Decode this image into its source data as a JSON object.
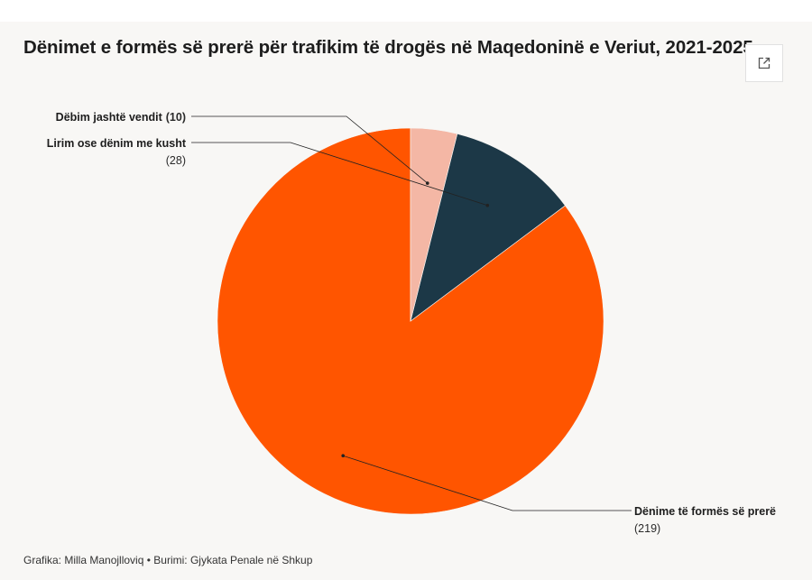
{
  "title": "Dënimet e formës së prerë për trafikim të drogës në Maqedoninë e Veriut, 2021-2025",
  "footer": {
    "graphic_label": "Grafika: Milla Manojlloviq",
    "separator": "•",
    "source_label": "Burimi: Gjykata Penale në Shkup"
  },
  "icons": {
    "expand": "external-link-icon"
  },
  "chart_data": {
    "type": "pie",
    "title": "Dënimet e formës së prerë për trafikim të drogës në Maqedoninë e Veriut, 2021-2025",
    "start_angle_deg": 0,
    "direction": "counterclockwise",
    "slices": [
      {
        "label": "Dënime të formës së prerë",
        "value": 219,
        "value_text": "(219)",
        "color": "#ff5500"
      },
      {
        "label": "Lirim ose dënim me kusht",
        "value": 28,
        "value_text": "(28)",
        "color": "#1c3847"
      },
      {
        "label": "Dëbim jashtë vendit",
        "value": 10,
        "value_text": "(10)",
        "color": "#f4b7a5"
      }
    ]
  }
}
